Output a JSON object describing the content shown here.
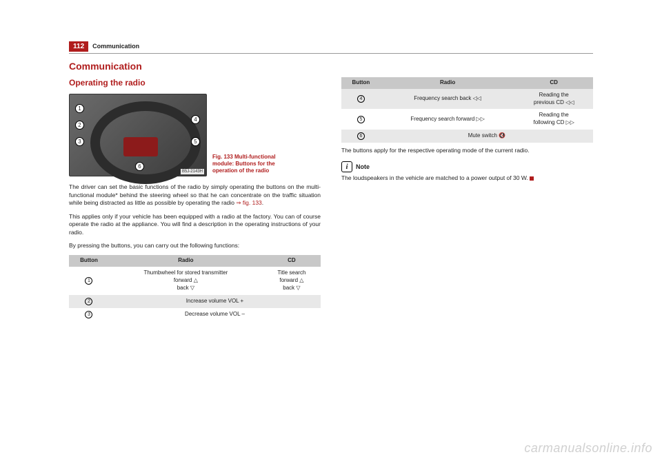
{
  "page": {
    "number": "112",
    "header": "Communication"
  },
  "section": {
    "title": "Communication",
    "subtitle": "Operating the radio"
  },
  "figure": {
    "caption": "Fig. 133   Multi-functional module: Buttons for the operation of the radio",
    "refcode": "B5J-2143H",
    "callouts": [
      "1",
      "2",
      "3",
      "4",
      "5",
      "6"
    ]
  },
  "paras": {
    "p1a": "The driver can set the basic functions of the radio by simply operating the buttons on the multi-functional module* behind the steering wheel so that he can concentrate on the traffic situation while being distracted as little as possible by operating the radio ",
    "p1ref": "⇒ fig. 133",
    "p1b": ".",
    "p2": "This applies only if your vehicle has been equipped with a radio at the factory. You can of course operate the radio at the appliance. You will find a description in the operating instructions of your radio.",
    "p3": "By pressing the buttons, you can carry out the following functions:"
  },
  "table": {
    "headers": [
      "Button",
      "Radio",
      "CD"
    ],
    "left_rows": [
      {
        "btn": "1",
        "radio": "Thumbwheel for stored transmitter\nforward △\nback ▽",
        "cd": "Title search\nforward △\nback ▽",
        "alt": false
      },
      {
        "btn": "2",
        "span": "Increase volume  VOL +",
        "alt": true
      },
      {
        "btn": "3",
        "span": "Decrease volume  VOL –",
        "alt": false
      }
    ],
    "right_rows": [
      {
        "btn": "4",
        "radio": "Frequency search back ◁◁",
        "cd": "Reading the\nprevious CD ◁◁",
        "alt": true
      },
      {
        "btn": "5",
        "radio": "Frequency search forward ▷▷",
        "cd": "Reading the\nfollowing CD ▷▷",
        "alt": false
      },
      {
        "btn": "6",
        "span": "Mute switch 🔇",
        "alt": true
      }
    ]
  },
  "right": {
    "after": "The buttons apply for the respective operating mode of the current radio.",
    "note_label": "Note",
    "note_text": "The loudspeakers in the vehicle are matched to a power output of 30 W."
  },
  "watermark": "carmanualsonline.info",
  "colors": {
    "accent": "#b01d1d",
    "header_bg": "#c8c8c8",
    "alt_bg": "#e8e8e8"
  }
}
